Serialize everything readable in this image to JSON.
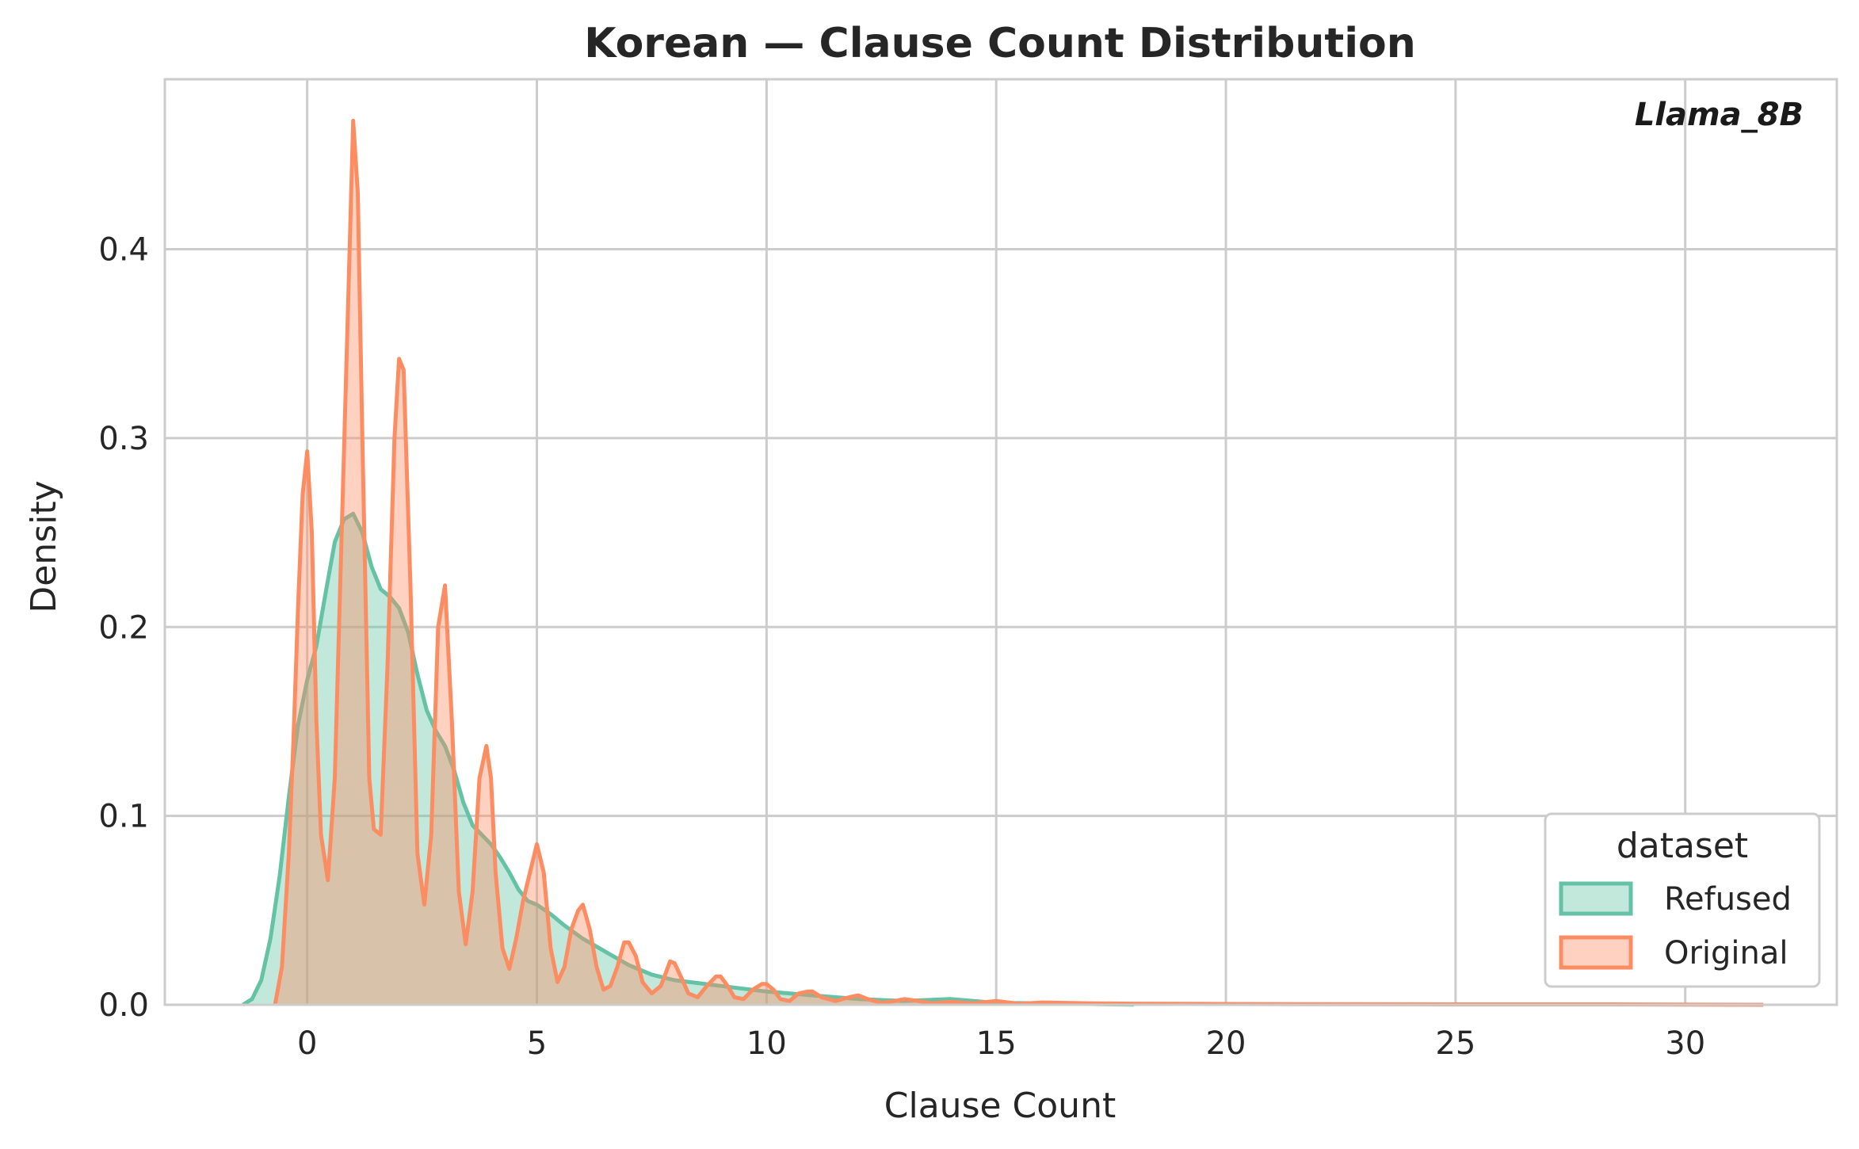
{
  "chart_data": {
    "type": "area",
    "title": "Korean — Clause Count Distribution",
    "xlabel": "Clause Count",
    "ylabel": "Density",
    "annotation": "Llama_8B",
    "xlim": [
      -3.1,
      33.3
    ],
    "ylim": [
      0,
      0.49
    ],
    "x_ticks": [
      0,
      5,
      10,
      15,
      20,
      25,
      30
    ],
    "x_tick_labels": [
      "0",
      "5",
      "10",
      "15",
      "20",
      "25",
      "30"
    ],
    "y_ticks": [
      0.0,
      0.1,
      0.2,
      0.3,
      0.4
    ],
    "y_tick_labels": [
      "0.0",
      "0.1",
      "0.2",
      "0.3",
      "0.4"
    ],
    "grid": true,
    "legend": {
      "title": "dataset",
      "position": "lower-right"
    },
    "series": [
      {
        "name": "Refused",
        "color": "#66c2a5",
        "x": [
          -1.4,
          -1.2,
          -1.0,
          -0.8,
          -0.6,
          -0.4,
          -0.2,
          0.0,
          0.2,
          0.4,
          0.6,
          0.8,
          1.0,
          1.2,
          1.4,
          1.6,
          1.8,
          2.0,
          2.2,
          2.4,
          2.6,
          2.8,
          3.0,
          3.2,
          3.4,
          3.6,
          3.8,
          4.0,
          4.2,
          4.4,
          4.6,
          4.8,
          5.0,
          5.3,
          5.6,
          6.0,
          6.5,
          7.0,
          7.5,
          8.0,
          9.0,
          10.0,
          11.0,
          12.0,
          13.0,
          14.0,
          15.0,
          16.0,
          17.0,
          18.0
        ],
        "values": [
          0.0,
          0.003,
          0.013,
          0.035,
          0.068,
          0.11,
          0.148,
          0.172,
          0.19,
          0.218,
          0.245,
          0.257,
          0.26,
          0.25,
          0.232,
          0.22,
          0.216,
          0.21,
          0.197,
          0.175,
          0.156,
          0.145,
          0.137,
          0.124,
          0.107,
          0.095,
          0.09,
          0.085,
          0.078,
          0.07,
          0.061,
          0.055,
          0.053,
          0.048,
          0.042,
          0.035,
          0.028,
          0.021,
          0.016,
          0.013,
          0.01,
          0.007,
          0.005,
          0.003,
          0.002,
          0.003,
          0.001,
          0.0008,
          0.0004,
          0.0001
        ]
      },
      {
        "name": "Original",
        "color": "#fc8d62",
        "x": [
          -0.7,
          -0.55,
          -0.4,
          -0.3,
          -0.2,
          -0.1,
          0.0,
          0.1,
          0.2,
          0.3,
          0.45,
          0.6,
          0.75,
          0.9,
          1.0,
          1.1,
          1.2,
          1.35,
          1.45,
          1.6,
          1.75,
          1.9,
          2.0,
          2.1,
          2.25,
          2.4,
          2.55,
          2.7,
          2.85,
          3.0,
          3.15,
          3.3,
          3.45,
          3.6,
          3.75,
          3.9,
          4.0,
          4.1,
          4.25,
          4.4,
          4.55,
          4.7,
          4.85,
          5.0,
          5.15,
          5.3,
          5.45,
          5.6,
          5.75,
          5.9,
          6.0,
          6.15,
          6.3,
          6.45,
          6.6,
          6.75,
          6.9,
          7.0,
          7.15,
          7.3,
          7.5,
          7.7,
          7.9,
          8.0,
          8.15,
          8.3,
          8.5,
          8.7,
          8.9,
          9.0,
          9.15,
          9.3,
          9.5,
          9.7,
          9.9,
          10.0,
          10.15,
          10.3,
          10.5,
          10.7,
          10.9,
          11.0,
          11.2,
          11.5,
          11.8,
          12.0,
          12.2,
          12.5,
          12.8,
          13.0,
          13.3,
          13.6,
          14.0,
          14.5,
          15.0,
          15.5,
          16.0,
          17.0,
          18.0,
          19.0,
          20.0,
          22.0,
          25.0,
          28.0,
          31.7
        ],
        "values": [
          0.0,
          0.02,
          0.08,
          0.14,
          0.21,
          0.27,
          0.293,
          0.25,
          0.15,
          0.09,
          0.066,
          0.12,
          0.25,
          0.38,
          0.468,
          0.43,
          0.3,
          0.12,
          0.093,
          0.09,
          0.18,
          0.3,
          0.342,
          0.336,
          0.22,
          0.08,
          0.053,
          0.09,
          0.2,
          0.222,
          0.15,
          0.06,
          0.032,
          0.06,
          0.12,
          0.137,
          0.12,
          0.07,
          0.03,
          0.019,
          0.035,
          0.055,
          0.07,
          0.085,
          0.07,
          0.03,
          0.012,
          0.02,
          0.04,
          0.05,
          0.053,
          0.04,
          0.02,
          0.008,
          0.01,
          0.02,
          0.033,
          0.033,
          0.026,
          0.012,
          0.006,
          0.01,
          0.023,
          0.022,
          0.014,
          0.006,
          0.004,
          0.01,
          0.015,
          0.015,
          0.01,
          0.004,
          0.003,
          0.008,
          0.011,
          0.011,
          0.008,
          0.003,
          0.002,
          0.006,
          0.007,
          0.007,
          0.004,
          0.002,
          0.004,
          0.005,
          0.003,
          0.001,
          0.002,
          0.003,
          0.002,
          0.0008,
          0.0015,
          0.0008,
          0.002,
          0.0005,
          0.0012,
          0.0008,
          0.0006,
          0.0005,
          0.0004,
          0.0003,
          0.0002,
          0.0002,
          0.0
        ]
      }
    ]
  }
}
